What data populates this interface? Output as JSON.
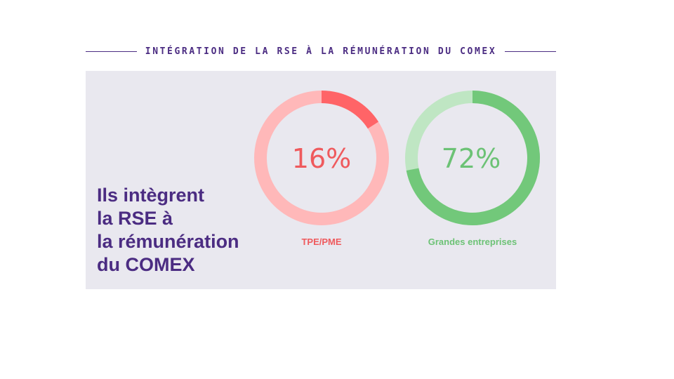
{
  "header": {
    "title": "INTÉGRATION DE LA RSE À LA RÉMUNÉRATION DU COMEX"
  },
  "headline": {
    "lines": [
      "Ils intègrent",
      "la RSE à",
      "la rémunération",
      "du COMEX"
    ]
  },
  "colors": {
    "title": "#4b2c82",
    "panel_bg": "#e9e8ef",
    "tpe_track": "#ffb8b9",
    "tpe_fill": "#ff6467",
    "tpe_text": "#ef5a5d",
    "ge_track": "#bfe6c3",
    "ge_fill": "#72c87a",
    "ge_text": "#6cc275"
  },
  "chart_data": {
    "type": "pie",
    "title": "INTÉGRATION DE LA RSE À LA RÉMUNÉRATION DU COMEX",
    "categories": [
      "TPE/PME",
      "Grandes entreprises"
    ],
    "values": [
      16,
      72
    ],
    "unit": "%",
    "value_labels": [
      "16%",
      "72%"
    ]
  }
}
